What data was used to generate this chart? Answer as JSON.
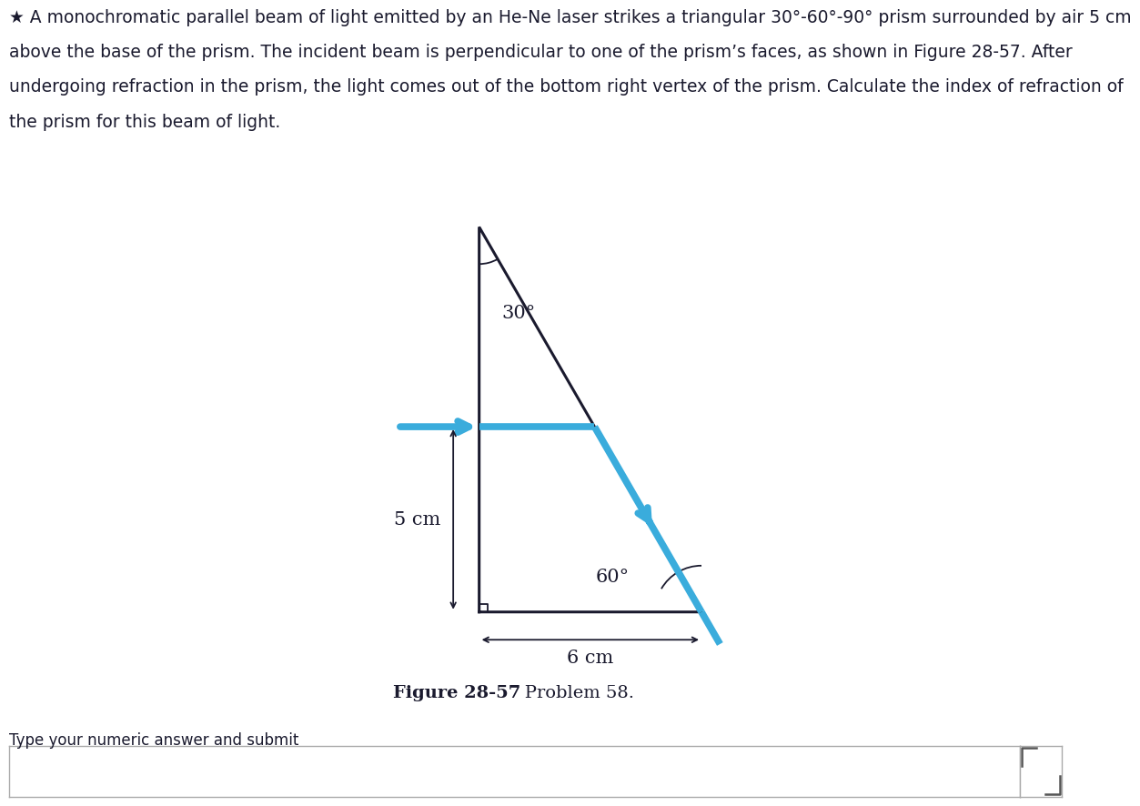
{
  "title_line1": "★ A monochromatic parallel beam of light emitted by an He-Ne laser strikes a triangular 30°-60°-90° prism surrounded by air 5 cm",
  "title_line2": "above the base of the prism. The incident beam is perpendicular to one of the prism’s faces, as shown in Figure 28-57. After",
  "title_line3": "undergoing refraction in the prism, the light comes out of the bottom right vertex of the prism. Calculate the index of refraction of",
  "title_line4": "the prism for this beam of light.",
  "figure_label": "Figure 28-57",
  "figure_problem": "   Problem 58.",
  "answer_prompt": "Type your numeric answer and submit",
  "bg_color": "#ffffff",
  "prism_color": "#1a1a2e",
  "beam_color": "#3aacdc",
  "dim_color": "#1a1a2e",
  "angle_30_label": "30°",
  "angle_60_label": "60°",
  "dim_5cm_label": "5 cm",
  "dim_6cm_label": "6 cm",
  "beam_lw": 5.5,
  "prism_lw": 2.2,
  "title_color": "#1a1a2e",
  "title_fontsize": 13.5
}
